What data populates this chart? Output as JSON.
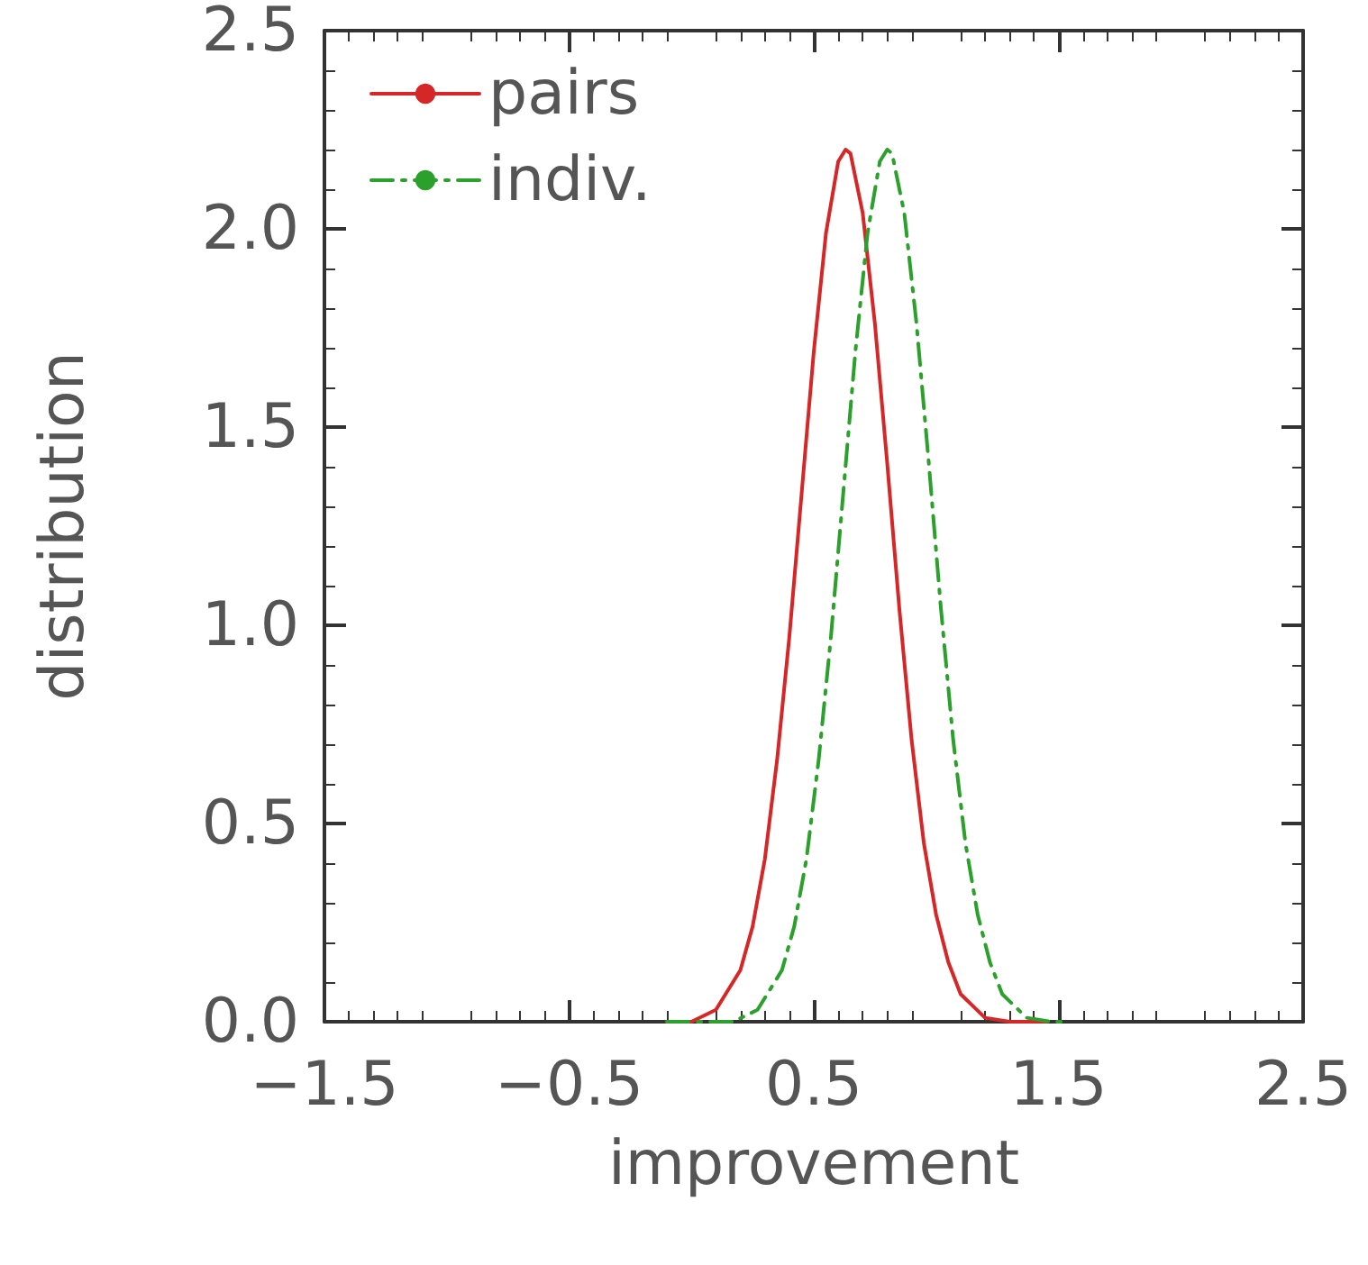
{
  "chart_data": {
    "type": "line",
    "xlabel": "improvement",
    "ylabel": "distribution",
    "xlim": [
      -1.5,
      2.5
    ],
    "xticks": [
      -1.5,
      -0.5,
      0.5,
      1.5,
      2.5
    ],
    "ylim": [
      0,
      2.5
    ],
    "yticks": [
      {
        "value": 0,
        "label": "0.0"
      },
      0.5,
      {
        "value": 1,
        "label": "1.0"
      },
      1.5,
      {
        "value": 2,
        "label": "2.0"
      },
      2.5
    ],
    "grid": false,
    "legend": "top left",
    "marker": "none",
    "series": [
      {
        "name": "pairs",
        "color": "#d62728",
        "line_style": "solid",
        "x": [
          -0.1,
          0,
          0.1,
          0.2,
          0.25,
          0.3,
          0.35,
          0.4,
          0.45,
          0.5,
          0.55,
          0.6,
          0.63,
          0.65,
          0.7,
          0.75,
          0.8,
          0.85,
          0.9,
          0.95,
          1.0,
          1.05,
          1.1,
          1.2,
          1.3,
          1.45
        ],
        "values": [
          0,
          0,
          0.03,
          0.13,
          0.24,
          0.41,
          0.66,
          0.97,
          1.33,
          1.69,
          1.99,
          2.17,
          2.2,
          2.19,
          2.04,
          1.76,
          1.41,
          1.04,
          0.71,
          0.45,
          0.27,
          0.15,
          0.07,
          0.01,
          0,
          0
        ]
      },
      {
        "name": "indiv.",
        "color": "#2ca02c",
        "line_style": "dashdot",
        "x": [
          -0.1,
          0.17,
          0.27,
          0.37,
          0.42,
          0.47,
          0.52,
          0.57,
          0.62,
          0.67,
          0.72,
          0.77,
          0.8,
          0.82,
          0.87,
          0.92,
          0.97,
          1.02,
          1.07,
          1.12,
          1.17,
          1.22,
          1.27,
          1.37,
          1.47,
          1.52
        ],
        "values": [
          0,
          0,
          0.03,
          0.13,
          0.24,
          0.41,
          0.66,
          0.97,
          1.33,
          1.69,
          1.99,
          2.17,
          2.2,
          2.19,
          2.04,
          1.76,
          1.41,
          1.04,
          0.71,
          0.45,
          0.27,
          0.15,
          0.07,
          0.01,
          0,
          0
        ]
      }
    ]
  }
}
